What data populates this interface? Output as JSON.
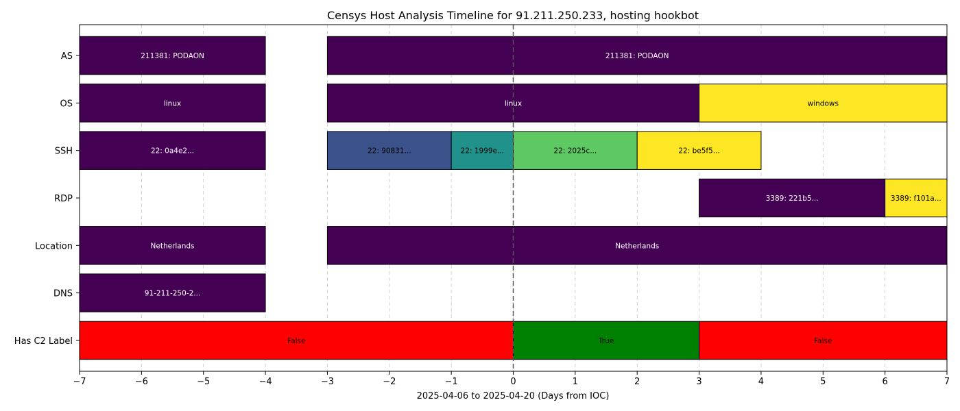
{
  "chart_data": {
    "type": "bar",
    "orientation": "horizontal-timeline",
    "title": "Censys Host Analysis Timeline for 91.211.250.233, hosting hookbot",
    "xlabel": "2025-04-06 to 2025-04-20 (Days from IOC)",
    "ylabel": "",
    "xlim": [
      -7,
      7
    ],
    "xticks": [
      -7,
      -6,
      -5,
      -4,
      -3,
      -2,
      -1,
      0,
      1,
      2,
      3,
      4,
      5,
      6,
      7
    ],
    "grid": "vertical-dashed",
    "ioc_marker_x": 0,
    "categories": [
      "AS",
      "OS",
      "SSH",
      "RDP",
      "Location",
      "DNS",
      "Has C2 Label"
    ],
    "rows": [
      {
        "name": "AS",
        "segments": [
          {
            "start": -7,
            "end": -4,
            "label": "211381: PODAON",
            "color": "#440154",
            "text_color": "#ffffff"
          },
          {
            "start": -3,
            "end": 7,
            "label": "211381: PODAON",
            "color": "#440154",
            "text_color": "#ffffff"
          }
        ]
      },
      {
        "name": "OS",
        "segments": [
          {
            "start": -7,
            "end": -4,
            "label": "linux",
            "color": "#440154",
            "text_color": "#ffffff"
          },
          {
            "start": -3,
            "end": 3,
            "label": "linux",
            "color": "#440154",
            "text_color": "#ffffff"
          },
          {
            "start": 3,
            "end": 7,
            "label": "windows",
            "color": "#fde725",
            "text_color": "#000000"
          }
        ]
      },
      {
        "name": "SSH",
        "segments": [
          {
            "start": -7,
            "end": -4,
            "label": "22: 0a4e2...",
            "color": "#440154",
            "text_color": "#ffffff"
          },
          {
            "start": -3,
            "end": -1,
            "label": "22: 90831...",
            "color": "#3b528b",
            "text_color": "#000000"
          },
          {
            "start": -1,
            "end": 0,
            "label": "22: 1999e...",
            "color": "#21918c",
            "text_color": "#000000"
          },
          {
            "start": 0,
            "end": 2,
            "label": "22: 2025c...",
            "color": "#5ec962",
            "text_color": "#000000"
          },
          {
            "start": 2,
            "end": 4,
            "label": "22: be5f5...",
            "color": "#fde725",
            "text_color": "#000000"
          }
        ]
      },
      {
        "name": "RDP",
        "segments": [
          {
            "start": 3,
            "end": 6,
            "label": "3389: 221b5...",
            "color": "#440154",
            "text_color": "#ffffff"
          },
          {
            "start": 6,
            "end": 7,
            "label": "3389: f101a...",
            "color": "#fde725",
            "text_color": "#000000"
          }
        ]
      },
      {
        "name": "Location",
        "segments": [
          {
            "start": -7,
            "end": -4,
            "label": "Netherlands",
            "color": "#440154",
            "text_color": "#ffffff"
          },
          {
            "start": -3,
            "end": 7,
            "label": "Netherlands",
            "color": "#440154",
            "text_color": "#ffffff"
          }
        ]
      },
      {
        "name": "DNS",
        "segments": [
          {
            "start": -7,
            "end": -4,
            "label": "91-211-250-2...",
            "color": "#440154",
            "text_color": "#ffffff"
          }
        ]
      },
      {
        "name": "Has C2 Label",
        "segments": [
          {
            "start": -7,
            "end": 0,
            "label": "False",
            "color": "#ff0000",
            "text_color": "#000000"
          },
          {
            "start": 0,
            "end": 3,
            "label": "True",
            "color": "#008000",
            "text_color": "#000000"
          },
          {
            "start": 3,
            "end": 7,
            "label": "False",
            "color": "#ff0000",
            "text_color": "#000000"
          }
        ]
      }
    ]
  }
}
